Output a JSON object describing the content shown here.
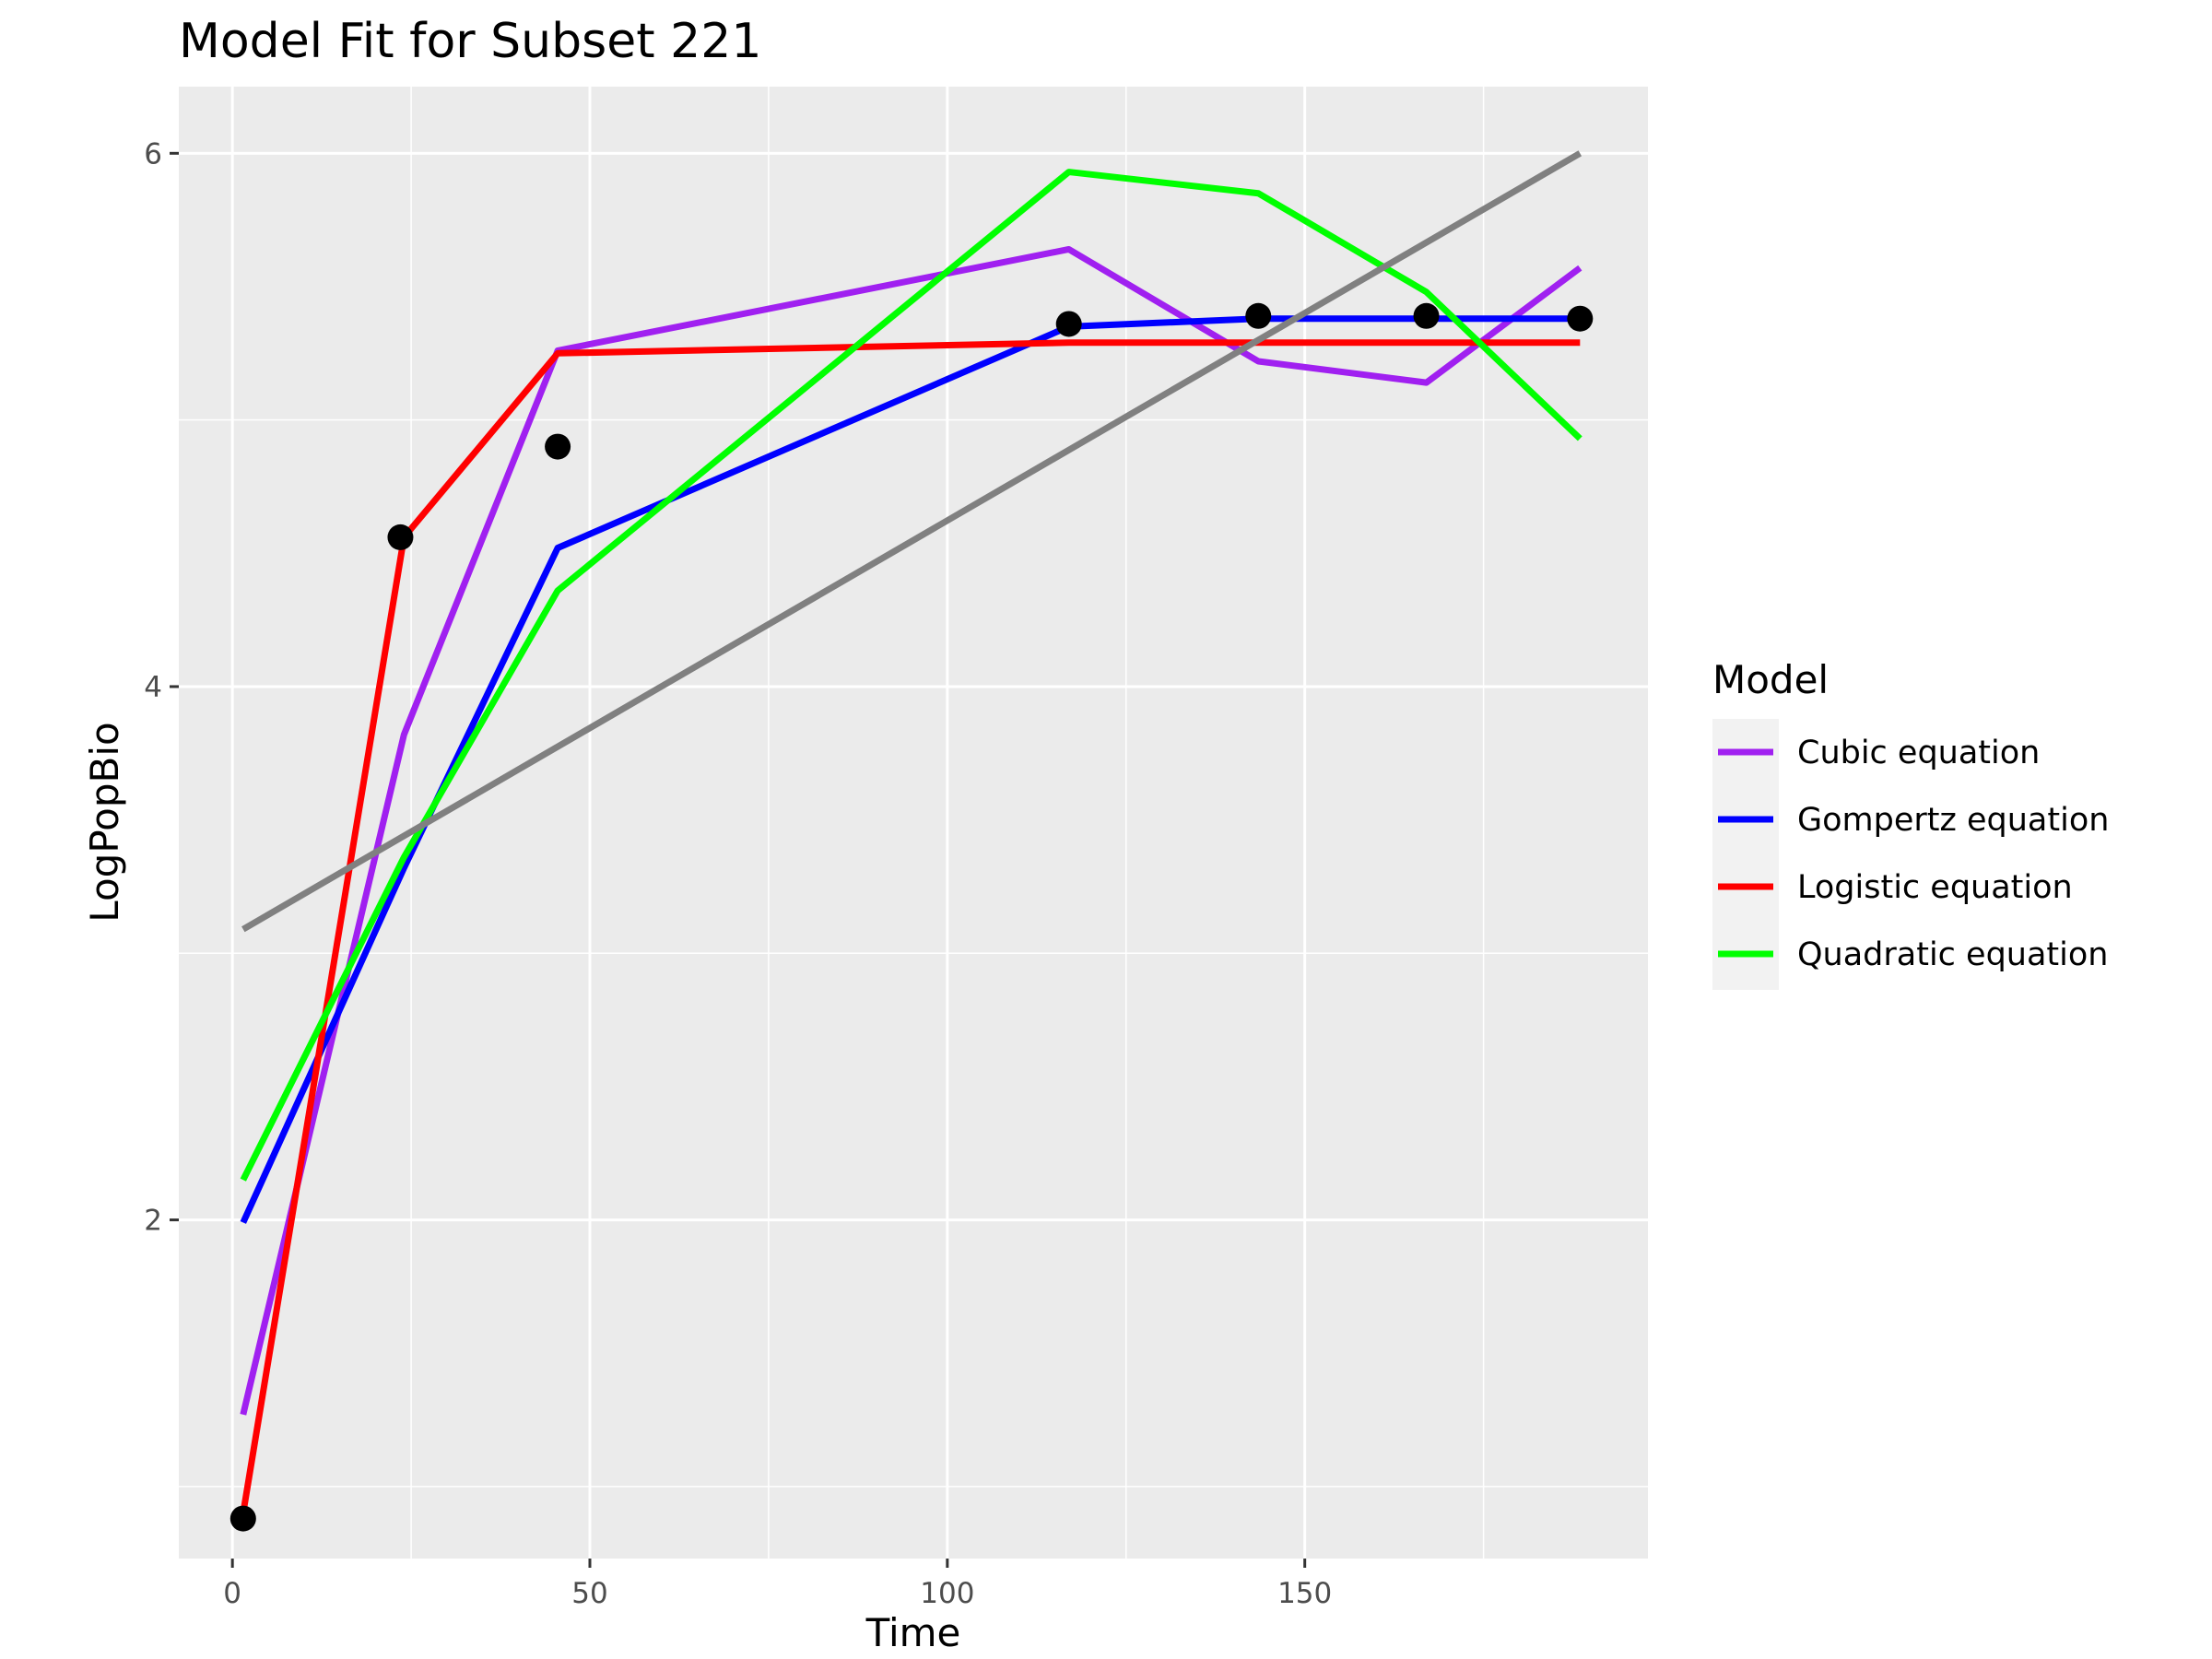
{
  "chart_data": {
    "type": "line",
    "title": "Model Fit for Subset 221",
    "xlabel": "Time",
    "ylabel": "LogPopBio",
    "xlim": [
      -7.5,
      198
    ],
    "ylim": [
      0.73,
      6.25
    ],
    "x_ticks": [
      0,
      50,
      100,
      150
    ],
    "y_ticks": [
      2,
      4,
      6
    ],
    "grid": true,
    "legend": {
      "title": "Model",
      "position": "right"
    },
    "observed_points": {
      "x": [
        1.5,
        23.5,
        45.5,
        117,
        143.5,
        167,
        188.5
      ],
      "y": [
        0.88,
        4.56,
        4.9,
        5.36,
        5.39,
        5.39,
        5.38
      ]
    },
    "series": [
      {
        "name": "Cubic equation",
        "color": "#a020f0",
        "x": [
          1.5,
          24,
          45.5,
          117,
          143.5,
          167,
          188.5
        ],
        "y": [
          1.27,
          3.82,
          5.26,
          5.64,
          5.22,
          5.14,
          5.57
        ]
      },
      {
        "name": "Gompertz equation",
        "color": "#0000ff",
        "x": [
          1.5,
          24,
          45.5,
          117,
          143.5,
          167,
          188.5
        ],
        "y": [
          1.99,
          3.32,
          4.52,
          5.35,
          5.38,
          5.38,
          5.38
        ]
      },
      {
        "name": "Logistic equation",
        "color": "#ff0000",
        "x": [
          1.5,
          24,
          45.5,
          117,
          143.5,
          167,
          188.5
        ],
        "y": [
          0.9,
          4.56,
          5.25,
          5.29,
          5.29,
          5.29,
          5.29
        ]
      },
      {
        "name": "Quadratic equation",
        "color": "#00ff00",
        "x": [
          1.5,
          24,
          45.5,
          117,
          143.5,
          167,
          188.5
        ],
        "y": [
          2.15,
          3.36,
          4.36,
          5.93,
          5.85,
          5.48,
          4.93
        ]
      },
      {
        "name": "",
        "color": "#808080",
        "x": [
          1.5,
          188.5
        ],
        "y": [
          3.09,
          6.0
        ]
      }
    ]
  }
}
